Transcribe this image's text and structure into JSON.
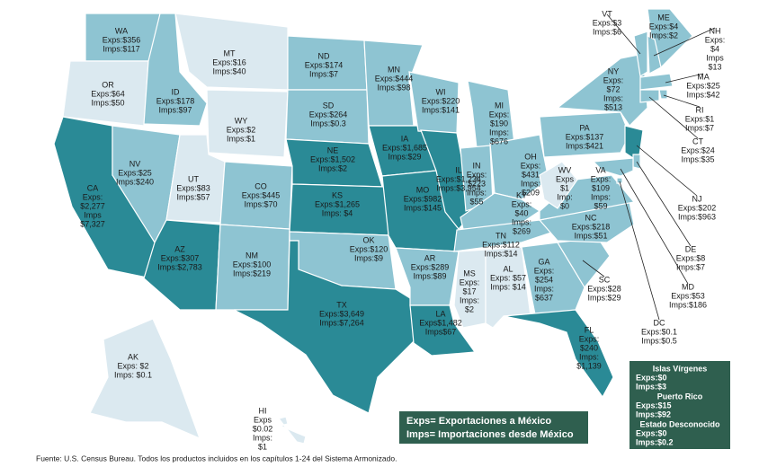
{
  "states": [
    {
      "name": "WA",
      "lines": [
        "Exps:$356",
        "Imps:$117"
      ],
      "color": "#8ec4d2"
    },
    {
      "name": "OR",
      "lines": [
        "Exps:$64",
        "Imps:$50"
      ],
      "color": "#dbe9f0"
    },
    {
      "name": "CA",
      "lines": [
        "Exps:",
        "$2,277",
        "Imps",
        "$7,327"
      ],
      "color": "#2a8a96"
    },
    {
      "name": "NV",
      "lines": [
        "Exps:$25",
        "Imps:$240"
      ],
      "color": "#8ec4d2"
    },
    {
      "name": "ID",
      "lines": [
        "Exps:$178",
        "Imps:$97"
      ],
      "color": "#8ec4d2"
    },
    {
      "name": "MT",
      "lines": [
        "Exps:$16",
        "Imps:$40"
      ],
      "color": "#dbe9f0"
    },
    {
      "name": "WY",
      "lines": [
        "Exps:$2",
        "Imps:$1"
      ],
      "color": "#dbe9f0"
    },
    {
      "name": "UT",
      "lines": [
        "Exps:$83",
        "Imps:$57"
      ],
      "color": "#dbe9f0"
    },
    {
      "name": "CO",
      "lines": [
        "Exps:$445",
        "Imps:$70"
      ],
      "color": "#8ec4d2"
    },
    {
      "name": "AZ",
      "lines": [
        "Exps:$307",
        "Imps:$2,783"
      ],
      "color": "#2a8a96"
    },
    {
      "name": "NM",
      "lines": [
        "Exps:$100",
        "Imps:$219"
      ],
      "color": "#8ec4d2"
    },
    {
      "name": "ND",
      "lines": [
        "Exps:$174",
        "Imps:$7"
      ],
      "color": "#8ec4d2"
    },
    {
      "name": "SD",
      "lines": [
        "Exps:$264",
        "Imps:$0.3"
      ],
      "color": "#8ec4d2"
    },
    {
      "name": "NE",
      "lines": [
        "Exps:$1,502",
        "Imps:$2"
      ],
      "color": "#2a8a96"
    },
    {
      "name": "KS",
      "lines": [
        "Exps:$1,265",
        "Imps: $4"
      ],
      "color": "#2a8a96"
    },
    {
      "name": "OK",
      "lines": [
        "Exps:$120",
        "Imps:$9"
      ],
      "color": "#8ec4d2"
    },
    {
      "name": "TX",
      "lines": [
        "Exps:$3,649",
        "Imps:$7,264"
      ],
      "color": "#2a8a96"
    },
    {
      "name": "MN",
      "lines": [
        "Exps:$444",
        "Imps:$98"
      ],
      "color": "#8ec4d2"
    },
    {
      "name": "IA",
      "lines": [
        "Exps:$1,685",
        "Imps:$29"
      ],
      "color": "#2a8a96"
    },
    {
      "name": "MO",
      "lines": [
        "Exps:$982",
        "Imps:$145"
      ],
      "color": "#2a8a96"
    },
    {
      "name": "AR",
      "lines": [
        "Exps:$289",
        "Imps:$89"
      ],
      "color": "#8ec4d2"
    },
    {
      "name": "LA",
      "lines": [
        "Exps$1,482",
        "Imps$67"
      ],
      "color": "#2a8a96"
    },
    {
      "name": "WI",
      "lines": [
        "Exps:$220",
        "Imps:$141"
      ],
      "color": "#8ec4d2"
    },
    {
      "name": "IL",
      "lines": [
        "Exps:$1,234",
        "Imps:$3,954"
      ],
      "color": "#2a8a96"
    },
    {
      "name": "MI",
      "lines": [
        "Exps:",
        "$190",
        "Imps:",
        "$676"
      ],
      "color": "#8ec4d2"
    },
    {
      "name": "IN",
      "lines": [
        "Exps:",
        "$223",
        "Imps:",
        "$55"
      ],
      "color": "#8ec4d2"
    },
    {
      "name": "OH",
      "lines": [
        "Exps:",
        "$431",
        "Imps:",
        "$209"
      ],
      "color": "#8ec4d2"
    },
    {
      "name": "KY",
      "lines": [
        "Exps:",
        "$40",
        "Imps:",
        "$269"
      ],
      "color": "#8ec4d2"
    },
    {
      "name": "TN",
      "lines": [
        "Exps:$112",
        "Imps:$14"
      ],
      "color": "#8ec4d2"
    },
    {
      "name": "MS",
      "lines": [
        "Exps:",
        "$17",
        "Imps:",
        "$2"
      ],
      "color": "#dbe9f0"
    },
    {
      "name": "AL",
      "lines": [
        "Exps: $57",
        "Imps: $14"
      ],
      "color": "#dbe9f0"
    },
    {
      "name": "GA",
      "lines": [
        "Exps:",
        "$254",
        "Imps:",
        "$637"
      ],
      "color": "#8ec4d2"
    },
    {
      "name": "FL",
      "lines": [
        "Exps:",
        "$240",
        "Imps:",
        "$1,139"
      ],
      "color": "#2a8a96"
    },
    {
      "name": "SC",
      "lines": [
        "Exps:$28",
        "Imps:$29"
      ],
      "color": "#8ec4d2"
    },
    {
      "name": "NC",
      "lines": [
        "Exps:$218",
        "Imps:$51"
      ],
      "color": "#8ec4d2"
    },
    {
      "name": "VA",
      "lines": [
        "Exps:",
        "$109",
        "Imps:",
        "$59"
      ],
      "color": "#8ec4d2"
    },
    {
      "name": "WV",
      "lines": [
        "Exps",
        "$1",
        "Imp:",
        "$0"
      ],
      "color": "#dbe9f0"
    },
    {
      "name": "PA",
      "lines": [
        "Exps:$137",
        "Imps:$421"
      ],
      "color": "#8ec4d2"
    },
    {
      "name": "NY",
      "lines": [
        "Exps:",
        "$72",
        "Imps:",
        "$513"
      ],
      "color": "#8ec4d2"
    },
    {
      "name": "NJ",
      "lines": [
        "Exps:$202",
        "Imps:$963"
      ],
      "color": "#2a8a96"
    },
    {
      "name": "VT",
      "lines": [
        "Exps:$3",
        "Imps:$6"
      ],
      "color": "#8ec4d2"
    },
    {
      "name": "ME",
      "lines": [
        "Exps:$4",
        "Imps:$2"
      ],
      "color": "#8ec4d2"
    },
    {
      "name": "NH",
      "lines": [
        "Exps:",
        "$4",
        "Imps",
        "$13"
      ],
      "color": "#8ec4d2"
    },
    {
      "name": "MA",
      "lines": [
        "Exps:$25",
        "Imps:$42"
      ],
      "color": "#8ec4d2"
    },
    {
      "name": "RI",
      "lines": [
        "Exps:$1",
        "Imps:$7"
      ],
      "color": "#8ec4d2"
    },
    {
      "name": "CT",
      "lines": [
        "Exps:$24",
        "Imps:$35"
      ],
      "color": "#8ec4d2"
    },
    {
      "name": "DE",
      "lines": [
        "Exps:$8",
        "Imps:$7"
      ],
      "color": "#8ec4d2"
    },
    {
      "name": "MD",
      "lines": [
        "Exps:$53",
        "Imps:$186"
      ],
      "color": "#8ec4d2"
    },
    {
      "name": "DC",
      "lines": [
        "Exps:$0.1",
        "Imps:$0.5"
      ],
      "color": "#8ec4d2"
    },
    {
      "name": "AK",
      "lines": [
        "Exps: $2",
        "Imps: $0.1"
      ],
      "color": "#dbe9f0"
    },
    {
      "name": "HI",
      "lines": [
        "Exps",
        "$0.02",
        "Imps:",
        "$1"
      ],
      "color": "#dbe9f0"
    }
  ],
  "territories": [
    {
      "title": "Islas Vírgenes",
      "lines": [
        "Exps:$0",
        "Imps:$3"
      ]
    },
    {
      "title": "Puerto Rico",
      "lines": [
        "Exps:$15",
        "Imps:$92"
      ]
    },
    {
      "title": "Estado Desconocido",
      "lines": [
        "Exps:$0",
        "Imps:$0.2"
      ]
    }
  ],
  "legend": [
    "Exps= Exportaciones a México",
    "Imps= Importaciones desde México"
  ],
  "source": "Fuente: U.S. Census Bureau. Todos los productos incluidos en los capítulos 1-24 del Sistema Armonizado."
}
